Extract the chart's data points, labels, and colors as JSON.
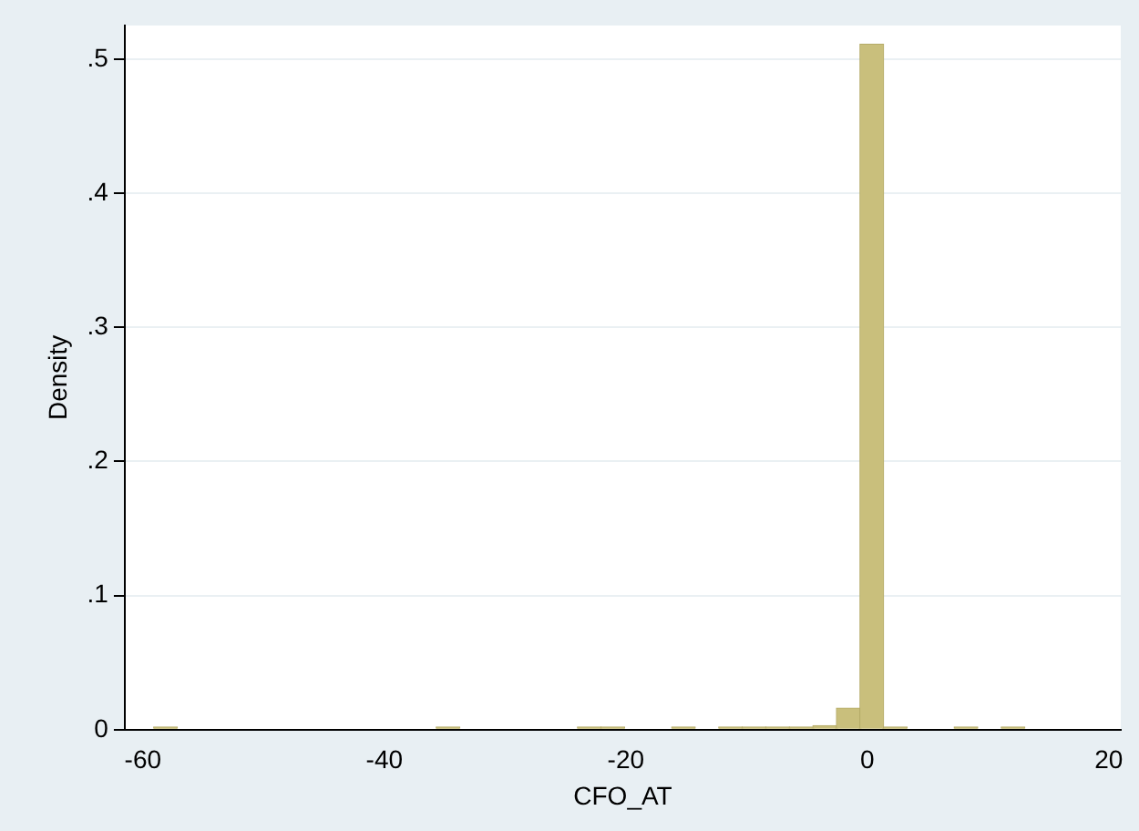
{
  "chart_data": {
    "type": "histogram",
    "xlabel": "CFO_AT",
    "ylabel": "Density",
    "color": "#c9bf7c",
    "bins": [
      -59.1,
      -57.15,
      -55.2,
      -53.25,
      -51.3,
      -49.35,
      -47.4,
      -45.45,
      -43.5,
      -41.55,
      -39.6,
      -37.65,
      -35.7,
      -33.75,
      -31.8,
      -29.85,
      -27.9,
      -25.95,
      -24,
      -22.05,
      -20.1,
      -18.15,
      -16.2,
      -14.25,
      -12.3,
      -10.35,
      -8.4,
      -6.45,
      -4.5,
      -2.55,
      -0.6,
      1.35,
      3.3,
      5.25,
      7.2,
      9.15,
      11.1,
      13.05
    ],
    "values": [
      0.002,
      0,
      0,
      0,
      0,
      0,
      0,
      0,
      0,
      0,
      0,
      0,
      0.002,
      0,
      0,
      0,
      0,
      0,
      0.002,
      0.002,
      0,
      0,
      0.002,
      0,
      0.002,
      0.002,
      0.002,
      0.002,
      0.003,
      0.016,
      0.511,
      0.002,
      0,
      0,
      0.002,
      0,
      0.002
    ],
    "xlim": [
      -61.5,
      21
    ],
    "xticks": [
      -60,
      -40,
      -20,
      0,
      20
    ],
    "ylim": [
      0,
      0.525
    ],
    "yticks": [
      {
        "value": 0,
        "label": "0"
      },
      {
        "value": 0.1,
        "label": ".1"
      },
      {
        "value": 0.2,
        "label": ".2"
      },
      {
        "value": 0.3,
        "label": ".3"
      },
      {
        "value": 0.4,
        "label": ".4"
      },
      {
        "value": 0.5,
        "label": ".5"
      }
    ],
    "grid": "y",
    "legend": false
  }
}
